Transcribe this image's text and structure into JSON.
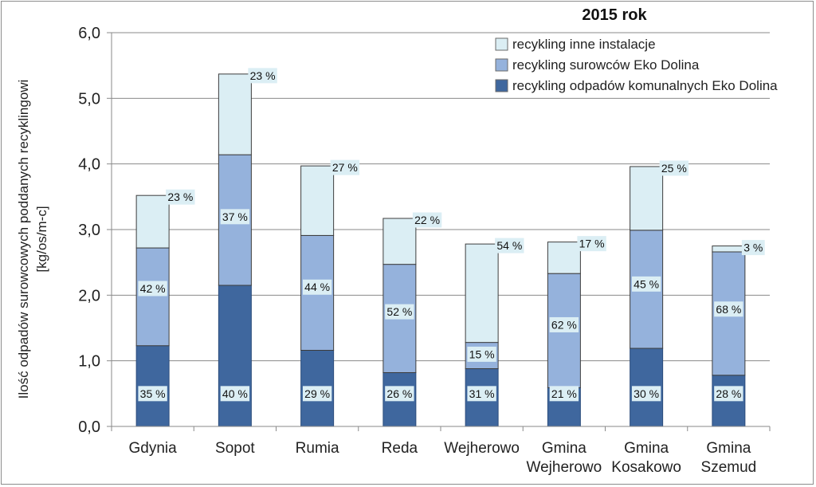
{
  "chart_data": {
    "type": "bar",
    "stacked": true,
    "title": "2015 rok",
    "ylabel_lines": [
      "Ilość odpadów surowcowych poddanych recyklingowi",
      "[kg/os/m-c]"
    ],
    "ylim": [
      0,
      6
    ],
    "yticks": [
      "0,0",
      "1,0",
      "2,0",
      "3,0",
      "4,0",
      "5,0",
      "6,0"
    ],
    "grid": true,
    "legend_position": "top-right",
    "categories": [
      [
        "Gdynia"
      ],
      [
        "Sopot"
      ],
      [
        "Rumia"
      ],
      [
        "Reda"
      ],
      [
        "Wejherowo"
      ],
      [
        "Gmina",
        "Wejherowo"
      ],
      [
        "Gmina",
        "Kosakowo"
      ],
      [
        "Gmina",
        "Szemud"
      ]
    ],
    "series": [
      {
        "name": "recykling odpadów komunalnych Eko Dolina",
        "color": "#3f679e",
        "values": [
          1.23,
          2.15,
          1.16,
          0.82,
          0.88,
          0.59,
          1.19,
          0.78
        ],
        "labels": [
          "35 %",
          "40 %",
          "29 %",
          "26 %",
          "31 %",
          "21 %",
          "30 %",
          "28 %"
        ]
      },
      {
        "name": "recykling surowców Eko Dolina",
        "color": "#95b2dc",
        "values": [
          1.49,
          1.99,
          1.75,
          1.65,
          0.4,
          1.74,
          1.8,
          1.88
        ],
        "labels": [
          "42 %",
          "37 %",
          "44 %",
          "52 %",
          "15 %",
          "62 %",
          "45 %",
          "68 %"
        ]
      },
      {
        "name": "recykling inne instalacje",
        "color": "#dbeef4",
        "values": [
          0.8,
          1.23,
          1.06,
          0.7,
          1.5,
          0.48,
          0.97,
          0.09
        ],
        "labels": [
          "23 %",
          "23 %",
          "27 %",
          "22 %",
          "54 %",
          "17 %",
          "25 %",
          "3 %"
        ]
      }
    ]
  }
}
